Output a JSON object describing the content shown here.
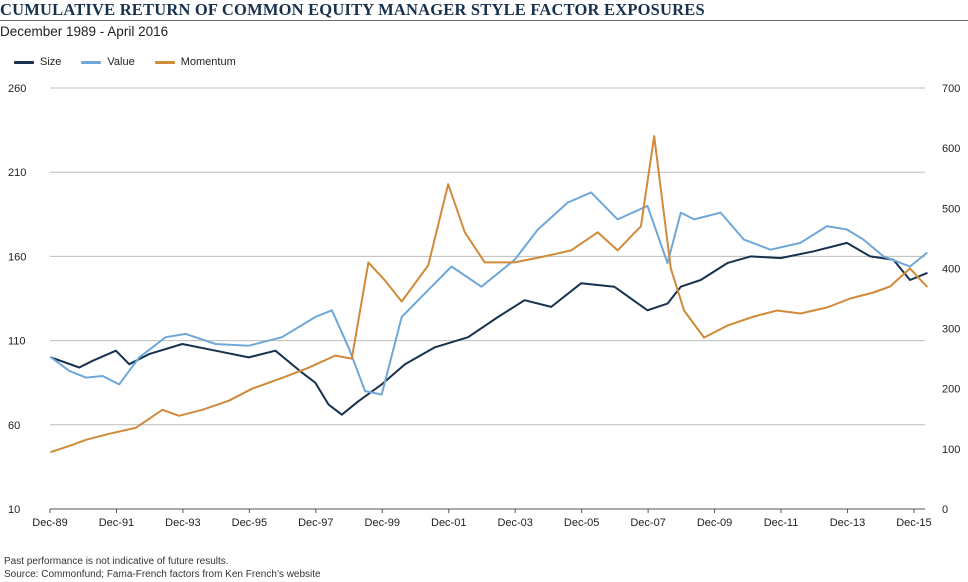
{
  "header": {
    "title": "CUMULATIVE  RETURN OF COMMON EQUITY MANAGER STYLE FACTOR EXPOSURES",
    "subtitle": "December 1989 - April 2016"
  },
  "footer": {
    "note": "Past performance is not indicative of future results.",
    "source": "Source: Commonfund; Fama-French factors from Ken French’s website"
  },
  "chart_data": {
    "type": "line",
    "title": "CUMULATIVE  RETURN OF COMMON EQUITY MANAGER STYLE FACTOR EXPOSURES",
    "subtitle": "December 1989 - April 2016",
    "legend_position": "top-left",
    "grid": "horizontal",
    "x_ticks": [
      "Dec-89",
      "Dec-91",
      "Dec-93",
      "Dec-95",
      "Dec-97",
      "Dec-99",
      "Dec-01",
      "Dec-03",
      "Dec-05",
      "Dec-07",
      "Dec-09",
      "Dec-11",
      "Dec-13",
      "Dec-15"
    ],
    "y_left": {
      "ylim": [
        10,
        260
      ],
      "ticks": [
        10,
        60,
        110,
        160,
        210,
        260
      ]
    },
    "y_right": {
      "ylim": [
        0,
        700
      ],
      "ticks": [
        0,
        100,
        200,
        300,
        400,
        500,
        600,
        700
      ]
    },
    "series": [
      {
        "name": "Size",
        "axis": "left",
        "color": "#17324f",
        "x": [
          1989.95,
          1990.8,
          1991.2,
          1991.9,
          1992.3,
          1992.9,
          1993.9,
          1994.9,
          1995.9,
          1996.7,
          1997.5,
          1997.9,
          1998.3,
          1998.7,
          1999.2,
          1999.9,
          2000.6,
          2001.5,
          2002.5,
          2003.4,
          2004.2,
          2005.0,
          2005.9,
          2006.9,
          2007.9,
          2008.5,
          2008.9,
          2009.5,
          2010.3,
          2011.0,
          2011.9,
          2012.9,
          2013.9,
          2014.6,
          2015.3,
          2015.8,
          2016.3
        ],
        "values": [
          100,
          94,
          98,
          104,
          96,
          102,
          108,
          104,
          100,
          104,
          91,
          85,
          72,
          66,
          74,
          84,
          96,
          106,
          112,
          124,
          134,
          130,
          144,
          142,
          128,
          132,
          142,
          146,
          156,
          160,
          159,
          163,
          168,
          160,
          158,
          146,
          150
        ]
      },
      {
        "name": "Value",
        "axis": "left",
        "color": "#6fa8d8",
        "x": [
          1989.95,
          1990.5,
          1991.0,
          1991.5,
          1992.0,
          1992.6,
          1993.4,
          1994.0,
          1994.9,
          1995.9,
          1996.9,
          1997.9,
          1998.4,
          1998.9,
          1999.4,
          1999.9,
          2000.5,
          2001.3,
          2002.0,
          2002.9,
          2003.9,
          2004.6,
          2005.5,
          2006.2,
          2007.0,
          2007.9,
          2008.5,
          2008.9,
          2009.3,
          2010.1,
          2010.8,
          2011.6,
          2012.5,
          2013.3,
          2013.9,
          2014.4,
          2015.0,
          2015.8,
          2016.3
        ],
        "values": [
          100,
          92,
          88,
          89,
          84,
          100,
          112,
          114,
          108,
          107,
          112,
          124,
          128,
          106,
          80,
          78,
          124,
          140,
          154,
          142,
          158,
          176,
          192,
          198,
          182,
          190,
          156,
          186,
          182,
          186,
          170,
          164,
          168,
          178,
          176,
          170,
          160,
          154,
          162
        ]
      },
      {
        "name": "Momentum",
        "axis": "right",
        "color": "#d08a3a",
        "x": [
          1989.95,
          1990.5,
          1991.0,
          1991.7,
          1992.5,
          1993.3,
          1993.8,
          1994.5,
          1995.3,
          1996.0,
          1997.0,
          1997.7,
          1998.5,
          1999.0,
          1999.5,
          2000.0,
          2000.5,
          2001.3,
          2001.9,
          2002.4,
          2003.0,
          2003.9,
          2004.8,
          2005.6,
          2006.4,
          2007.0,
          2007.7,
          2008.1,
          2008.6,
          2009.0,
          2009.6,
          2010.3,
          2011.1,
          2011.8,
          2012.5,
          2013.3,
          2014.0,
          2014.7,
          2015.2,
          2015.8,
          2016.3
        ],
        "values": [
          95,
          105,
          115,
          125,
          135,
          165,
          155,
          165,
          180,
          200,
          220,
          235,
          255,
          250,
          410,
          380,
          345,
          405,
          540,
          460,
          410,
          410,
          420,
          430,
          460,
          430,
          470,
          620,
          400,
          330,
          285,
          305,
          320,
          330,
          325,
          335,
          350,
          360,
          370,
          400,
          370
        ]
      }
    ]
  }
}
